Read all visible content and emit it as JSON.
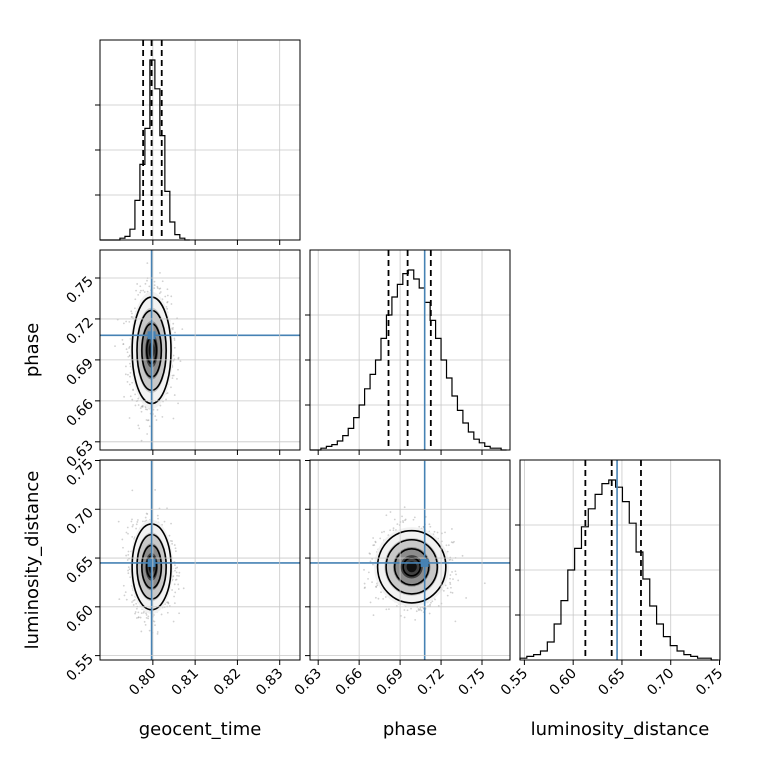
{
  "chart_data": {
    "type": "corner",
    "parameters": [
      "geocent_time",
      "phase",
      "luminosity_distance"
    ],
    "truths": {
      "geocent_time": 0.7997,
      "phase": 0.708,
      "luminosity_distance": 0.645
    },
    "colors": {
      "truth": "#4682b4",
      "contour": "#000000",
      "grid": "#c8c8c8",
      "points": "#9a9a9a"
    },
    "ranges": {
      "geocent_time": [
        0.7875,
        0.8348
      ],
      "phase": [
        0.624,
        0.7705
      ],
      "luminosity_distance": [
        0.5455,
        0.7505
      ]
    },
    "ticks": {
      "geocent_time": [
        0.8,
        0.81,
        0.82,
        0.83
      ],
      "phase": [
        0.63,
        0.66,
        0.69,
        0.72,
        0.75
      ],
      "luminosity_distance": [
        0.55,
        0.6,
        0.65,
        0.7,
        0.75
      ]
    },
    "tick_labels": {
      "geocent_time": [
        "0.80",
        "0.81",
        "0.82",
        "0.83"
      ],
      "phase": [
        "0.63",
        "0.66",
        "0.69",
        "0.72",
        "0.75"
      ],
      "luminosity_distance": [
        "0.55",
        "0.60",
        "0.65",
        "0.70",
        "0.75"
      ]
    },
    "quantiles": {
      "geocent_time": [
        0.7977,
        0.7997,
        0.8021
      ],
      "phase": [
        0.6815,
        0.6955,
        0.7125
      ],
      "luminosity_distance": [
        0.6125,
        0.6395,
        0.6695
      ]
    },
    "histograms": {
      "geocent_time": {
        "edges": [
          0.7875,
          0.78868,
          0.78986,
          0.79104,
          0.79222,
          0.7934,
          0.79458,
          0.79576,
          0.79694,
          0.79812,
          0.7993,
          0.80048,
          0.80166,
          0.80284,
          0.80402,
          0.8052,
          0.80638,
          0.80756,
          0.80874
        ],
        "counts": [
          0,
          0,
          0,
          0,
          0.01,
          0.02,
          0.06,
          0.22,
          0.42,
          0.62,
          1.0,
          0.84,
          0.58,
          0.27,
          0.1,
          0.03,
          0.01,
          0
        ]
      },
      "phase": {
        "edges": [
          0.624,
          0.628,
          0.632,
          0.636,
          0.64,
          0.644,
          0.648,
          0.652,
          0.656,
          0.66,
          0.664,
          0.668,
          0.672,
          0.676,
          0.68,
          0.684,
          0.688,
          0.692,
          0.696,
          0.7,
          0.704,
          0.708,
          0.712,
          0.716,
          0.72,
          0.724,
          0.728,
          0.732,
          0.736,
          0.74,
          0.744,
          0.748,
          0.752,
          0.756,
          0.76,
          0.764,
          0.768
        ],
        "counts": [
          0,
          0,
          0.01,
          0.02,
          0.03,
          0.05,
          0.08,
          0.12,
          0.18,
          0.25,
          0.34,
          0.42,
          0.5,
          0.62,
          0.75,
          0.85,
          0.92,
          0.98,
          1.0,
          0.95,
          0.9,
          0.82,
          0.72,
          0.62,
          0.5,
          0.4,
          0.3,
          0.22,
          0.15,
          0.1,
          0.06,
          0.04,
          0.02,
          0.01,
          0.01,
          0
        ]
      },
      "luminosity_distance": {
        "edges": [
          0.5455,
          0.5525,
          0.5595,
          0.5665,
          0.5735,
          0.5805,
          0.5875,
          0.5945,
          0.6015,
          0.6085,
          0.6155,
          0.6225,
          0.6295,
          0.6365,
          0.6435,
          0.6505,
          0.6575,
          0.6645,
          0.6715,
          0.6785,
          0.6855,
          0.6925,
          0.6995,
          0.7065,
          0.7135,
          0.7205,
          0.7275,
          0.7345,
          0.7415,
          0.7485
        ],
        "counts": [
          0.01,
          0.02,
          0.03,
          0.05,
          0.1,
          0.2,
          0.33,
          0.5,
          0.62,
          0.74,
          0.84,
          0.92,
          0.98,
          1.0,
          0.96,
          0.88,
          0.76,
          0.6,
          0.45,
          0.3,
          0.2,
          0.13,
          0.08,
          0.05,
          0.03,
          0.02,
          0.01,
          0.01,
          0
        ]
      }
    },
    "pairs": [
      {
        "x": "geocent_time",
        "y": "phase",
        "center": [
          0.7997,
          0.697
        ],
        "spread": [
          0.0023,
          0.0195
        ],
        "contour_levels": [
          0.5,
          1.0,
          1.5,
          2.0
        ]
      },
      {
        "x": "geocent_time",
        "y": "luminosity_distance",
        "center": [
          0.7997,
          0.641
        ],
        "spread": [
          0.0023,
          0.022
        ],
        "contour_levels": [
          0.5,
          1.0,
          1.5,
          2.0
        ]
      },
      {
        "x": "phase",
        "y": "luminosity_distance",
        "center": [
          0.6985,
          0.641
        ],
        "spread": [
          0.0125,
          0.0185
        ],
        "contour_levels": [
          0.5,
          1.0,
          1.5,
          2.0
        ]
      }
    ]
  }
}
